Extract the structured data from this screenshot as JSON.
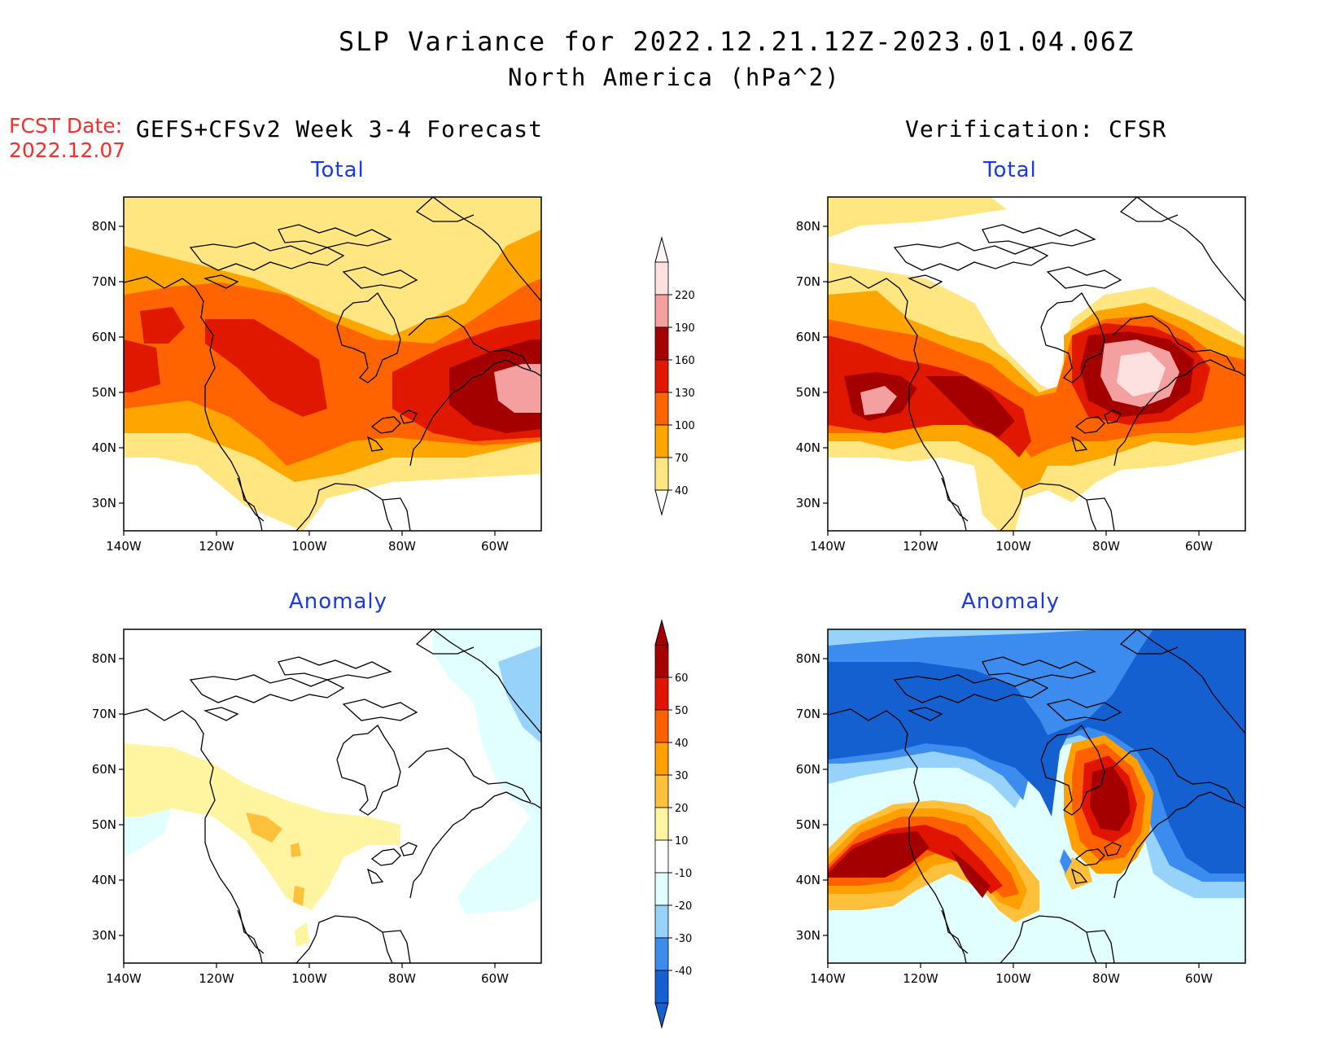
{
  "header": {
    "title": "SLP Variance for 2022.12.21.12Z-2023.01.04.06Z",
    "subtitle": "North America (hPa^2)"
  },
  "fcst": {
    "label": "FCST Date:",
    "date": "2022.12.07"
  },
  "columns": {
    "left": "GEFS+CFSv2 Week 3-4 Forecast",
    "right": "Verification: CFSR"
  },
  "panels": {
    "total_label": "Total",
    "anomaly_label": "Anomaly"
  },
  "axes": {
    "lon_ticks": [
      "140W",
      "120W",
      "100W",
      "80W",
      "60W"
    ],
    "lat_ticks": [
      "80N",
      "70N",
      "60N",
      "50N",
      "40N",
      "30N"
    ]
  },
  "colorbars": {
    "total": {
      "levels": [
        "40",
        "70",
        "100",
        "130",
        "160",
        "190",
        "220"
      ],
      "colors": [
        "#ffe680",
        "#ffa500",
        "#ff6400",
        "#e11800",
        "#a50000",
        "#f4a0a0",
        "#fde0e0"
      ]
    },
    "anomaly": {
      "levels": [
        "-40",
        "-30",
        "-20",
        "-10",
        "10",
        "20",
        "30",
        "40",
        "50",
        "60"
      ],
      "colors": [
        "#1560d0",
        "#3c8cf0",
        "#96d2fa",
        "#e1ffff",
        "#ffffff",
        "#fff5a0",
        "#ffc03c",
        "#ffa000",
        "#ff6000",
        "#e01400",
        "#a50000"
      ]
    }
  },
  "colors": {
    "title_blue": "#1a38e8",
    "fcst_red": "#ff2a2a"
  }
}
